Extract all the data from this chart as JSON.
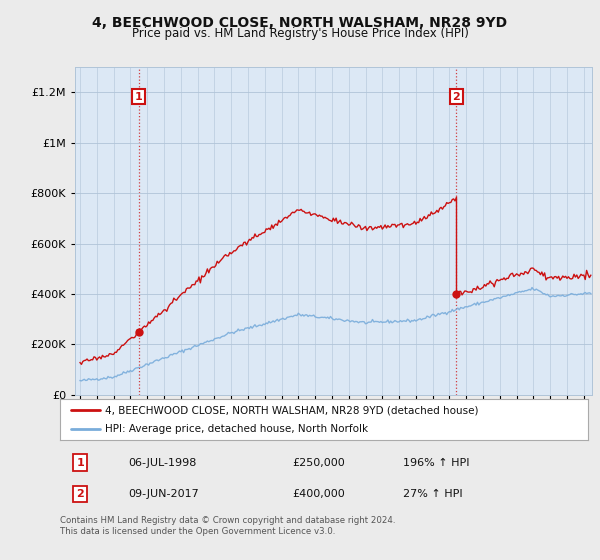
{
  "title": "4, BEECHWOOD CLOSE, NORTH WALSHAM, NR28 9YD",
  "subtitle": "Price paid vs. HM Land Registry's House Price Index (HPI)",
  "legend_line1": "4, BEECHWOOD CLOSE, NORTH WALSHAM, NR28 9YD (detached house)",
  "legend_line2": "HPI: Average price, detached house, North Norfolk",
  "footnote": "Contains HM Land Registry data © Crown copyright and database right 2024.\nThis data is licensed under the Open Government Licence v3.0.",
  "marker1_label": "1",
  "marker1_date": "06-JUL-1998",
  "marker1_price": "£250,000",
  "marker1_hpi": "196% ↑ HPI",
  "marker2_label": "2",
  "marker2_date": "09-JUN-2017",
  "marker2_price": "£400,000",
  "marker2_hpi": "27% ↑ HPI",
  "hpi_color": "#7aaddb",
  "price_color": "#cc1111",
  "background_color": "#ebebeb",
  "plot_bg_color": "#dce8f5",
  "ylim": [
    0,
    1300000
  ],
  "xmin": 1994.7,
  "xmax": 2025.5
}
